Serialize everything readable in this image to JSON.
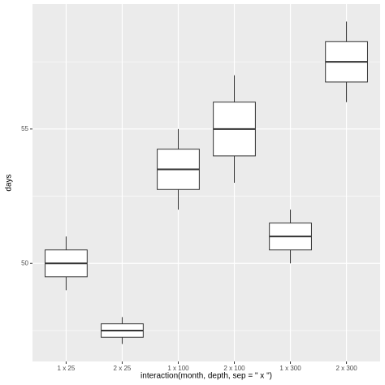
{
  "chart_data": {
    "type": "box",
    "x_label": "interaction(month, depth, sep = \" x \")",
    "y_label": "days",
    "categories": [
      "1 x 25",
      "2 x 25",
      "1 x 100",
      "2 x 100",
      "1 x 300",
      "2 x 300"
    ],
    "min": [
      49,
      47,
      52,
      53,
      50,
      56
    ],
    "q1": [
      49.5,
      47.25,
      52.75,
      54,
      50.5,
      56.75
    ],
    "median": [
      50,
      47.5,
      53.5,
      55,
      51,
      57.5
    ],
    "q3": [
      50.5,
      47.75,
      54.25,
      56,
      51.5,
      58.25
    ],
    "max": [
      51,
      48,
      55,
      57,
      52,
      59
    ],
    "ylim": [
      46.35,
      59.65
    ],
    "yticks": [
      50,
      55
    ],
    "minor_yticks": [
      47.5,
      52.5,
      57.5
    ],
    "grid": true,
    "color": "#ffffff"
  }
}
